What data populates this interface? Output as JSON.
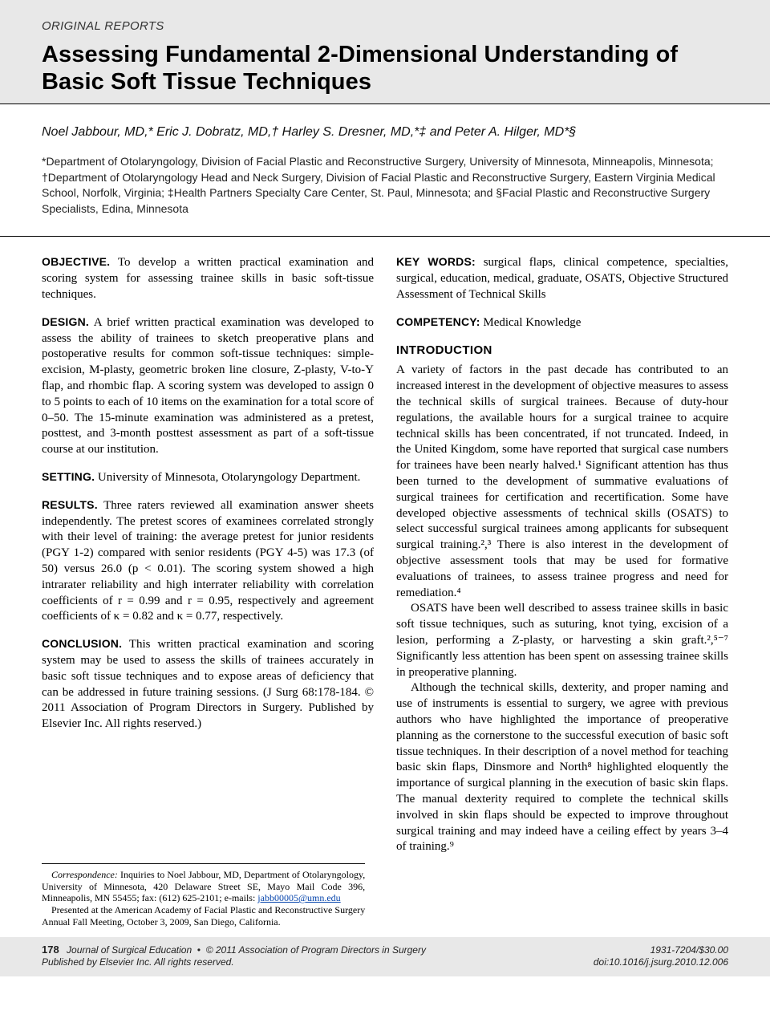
{
  "colors": {
    "band_bg": "#e8e8e8",
    "rule": "#000000",
    "link": "#0645ad",
    "text": "#000000"
  },
  "typography": {
    "title_fontsize": 29,
    "title_weight": 800,
    "section_label_fontsize": 15,
    "authors_fontsize": 16,
    "affil_fontsize": 14,
    "body_fontsize": 15,
    "abs_head_fontsize": 14,
    "intro_head_fontsize": 15,
    "footnote_fontsize": 12,
    "footer_fontsize": 12
  },
  "header": {
    "section_label": "ORIGINAL REPORTS",
    "title": "Assessing Fundamental 2-Dimensional Understanding of Basic Soft Tissue Techniques"
  },
  "authors_line": "Noel Jabbour, MD,* Eric J. Dobratz, MD,† Harley S. Dresner, MD,*‡ and Peter A. Hilger, MD*§",
  "affiliations_line": "*Department of Otolaryngology, Division of Facial Plastic and Reconstructive Surgery, University of Minnesota, Minneapolis, Minnesota; †Department of Otolaryngology Head and Neck Surgery, Division of Facial Plastic and Reconstructive Surgery, Eastern Virginia Medical School, Norfolk, Virginia; ‡Health Partners Specialty Care Center, St. Paul, Minnesota; and §Facial Plastic and Reconstructive Surgery Specialists, Edina, Minnesota",
  "abstract": {
    "objective": {
      "head": "OBJECTIVE.",
      "body": "To develop a written practical examination and scoring system for assessing trainee skills in basic soft-tissue techniques."
    },
    "design": {
      "head": "DESIGN.",
      "body": "A brief written practical examination was developed to assess the ability of trainees to sketch preoperative plans and postoperative results for common soft-tissue techniques: simple-excision, M-plasty, geometric broken line closure, Z-plasty, V-to-Y flap, and rhombic flap. A scoring system was developed to assign 0 to 5 points to each of 10 items on the examination for a total score of 0–50. The 15-minute examination was administered as a pretest, posttest, and 3-month posttest assessment as part of a soft-tissue course at our institution."
    },
    "setting": {
      "head": "SETTING.",
      "body": "University of Minnesota, Otolaryngology Department."
    },
    "results": {
      "head": "RESULTS.",
      "body": "Three raters reviewed all examination answer sheets independently. The pretest scores of examinees correlated strongly with their level of training: the average pretest for junior residents (PGY 1-2) compared with senior residents (PGY 4-5) was 17.3 (of 50) versus 26.0 (p < 0.01). The scoring system showed a high intrarater reliability and high interrater reliability with correlation coefficients of r = 0.99 and r = 0.95, respectively and agreement coefficients of κ = 0.82 and κ = 0.77, respectively."
    },
    "conclusion": {
      "head": "CONCLUSION.",
      "body": "This written practical examination and scoring system may be used to assess the skills of trainees accurately in basic soft tissue techniques and to expose areas of deficiency that can be addressed in future training sessions. (J Surg 68:178-184. © 2011 Association of Program Directors in Surgery. Published by Elsevier Inc. All rights reserved.)"
    },
    "keywords": {
      "head": "KEY WORDS:",
      "body": "surgical flaps, clinical competence, specialties, surgical, education, medical, graduate, OSATS, Objective Structured Assessment of Technical Skills"
    },
    "competency": {
      "head": "COMPETENCY:",
      "body": "Medical Knowledge"
    }
  },
  "introduction": {
    "heading": "INTRODUCTION",
    "paragraphs": [
      "A variety of factors in the past decade has contributed to an increased interest in the development of objective measures to assess the technical skills of surgical trainees. Because of duty-hour regulations, the available hours for a surgical trainee to acquire technical skills has been concentrated, if not truncated. Indeed, in the United Kingdom, some have reported that surgical case numbers for trainees have been nearly halved.¹ Significant attention has thus been turned to the development of summative evaluations of surgical trainees for certification and recertification. Some have developed objective assessments of technical skills (OSATS) to select successful surgical trainees among applicants for subsequent surgical training.²,³ There is also interest in the development of objective assessment tools that may be used for formative evaluations of trainees, to assess trainee progress and need for remediation.⁴",
      "OSATS have been well described to assess trainee skills in basic soft tissue techniques, such as suturing, knot tying, excision of a lesion, performing a Z-plasty, or harvesting a skin graft.²,⁵⁻⁷ Significantly less attention has been spent on assessing trainee skills in preoperative planning.",
      "Although the technical skills, dexterity, and proper naming and use of instruments is essential to surgery, we agree with previous authors who have highlighted the importance of preoperative planning as the cornerstone to the successful execution of basic soft tissue techniques. In their description of a novel method for teaching basic skin flaps, Dinsmore and North⁸ highlighted eloquently the importance of surgical planning in the execution of basic skin flaps. The manual dexterity required to complete the technical skills involved in skin flaps should be expected to improve throughout surgical training and may indeed have a ceiling effect by years 3–4 of training.⁹"
    ]
  },
  "footnotes": {
    "correspondence_label": "Correspondence:",
    "correspondence": "Inquiries to Noel Jabbour, MD, Department of Otolaryngology, University of Minnesota, 420 Delaware Street SE, Mayo Mail Code 396, Minneapolis, MN 55455; fax: (612) 625-2101; e-mails: ",
    "email": "jabb00005@umn.edu",
    "presented": "Presented at the American Academy of Facial Plastic and Reconstructive Surgery Annual Fall Meeting, October 3, 2009, San Diego, California."
  },
  "footer": {
    "page_number": "178",
    "journal": "Journal of Surgical Education",
    "copyright_line1": "© 2011 Association of Program Directors in Surgery",
    "copyright_line2": "Published by Elsevier Inc. All rights reserved.",
    "issn_price": "1931-7204/$30.00",
    "doi": "doi:10.1016/j.jsurg.2010.12.006"
  }
}
